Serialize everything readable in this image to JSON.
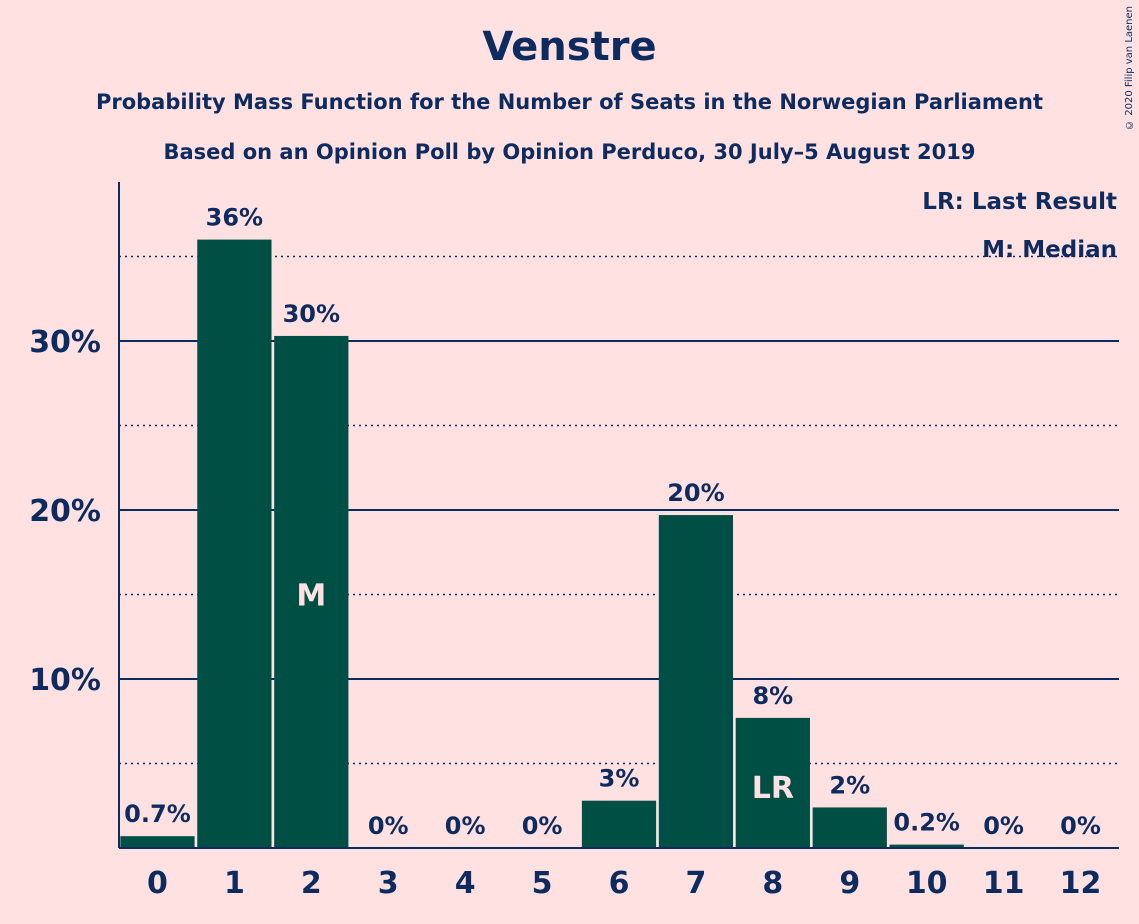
{
  "chart_data": {
    "type": "bar",
    "title": "Venstre",
    "subtitle": "Probability Mass Function for the Number of Seats in the Norwegian Parliament",
    "subtitle2": "Based on an Opinion Poll by Opinion Perduco, 30 July–5 August 2019",
    "copyright": "© 2020 Filip van Laenen",
    "categories": [
      "0",
      "1",
      "2",
      "3",
      "4",
      "5",
      "6",
      "7",
      "8",
      "9",
      "10",
      "11",
      "12"
    ],
    "values": [
      0.7,
      36,
      30.3,
      0,
      0,
      0,
      2.8,
      19.7,
      7.7,
      2.4,
      0.2,
      0,
      0
    ],
    "data_labels": [
      "0.7%",
      "36%",
      "30%",
      "0%",
      "0%",
      "0%",
      "3%",
      "20%",
      "8%",
      "2%",
      "0.2%",
      "0%",
      "0%"
    ],
    "median_index": 2,
    "median_marker": "M",
    "last_result_index": 8,
    "last_result_marker": "LR",
    "y_ticks": [
      {
        "value": 10,
        "label": "10%"
      },
      {
        "value": 20,
        "label": "20%"
      },
      {
        "value": 30,
        "label": "30%"
      }
    ],
    "y_minor_gridlines": [
      5,
      15,
      25,
      35
    ],
    "ylim": [
      0,
      39
    ],
    "grid": true,
    "legend": {
      "position": "top-right",
      "items": [
        "LR: Last Result",
        "M: Median"
      ]
    },
    "colors": {
      "bar": "#004f45",
      "text": "#0d2b5e",
      "background": "#ffe1e2",
      "inside_label": "#ffe1e2"
    }
  }
}
